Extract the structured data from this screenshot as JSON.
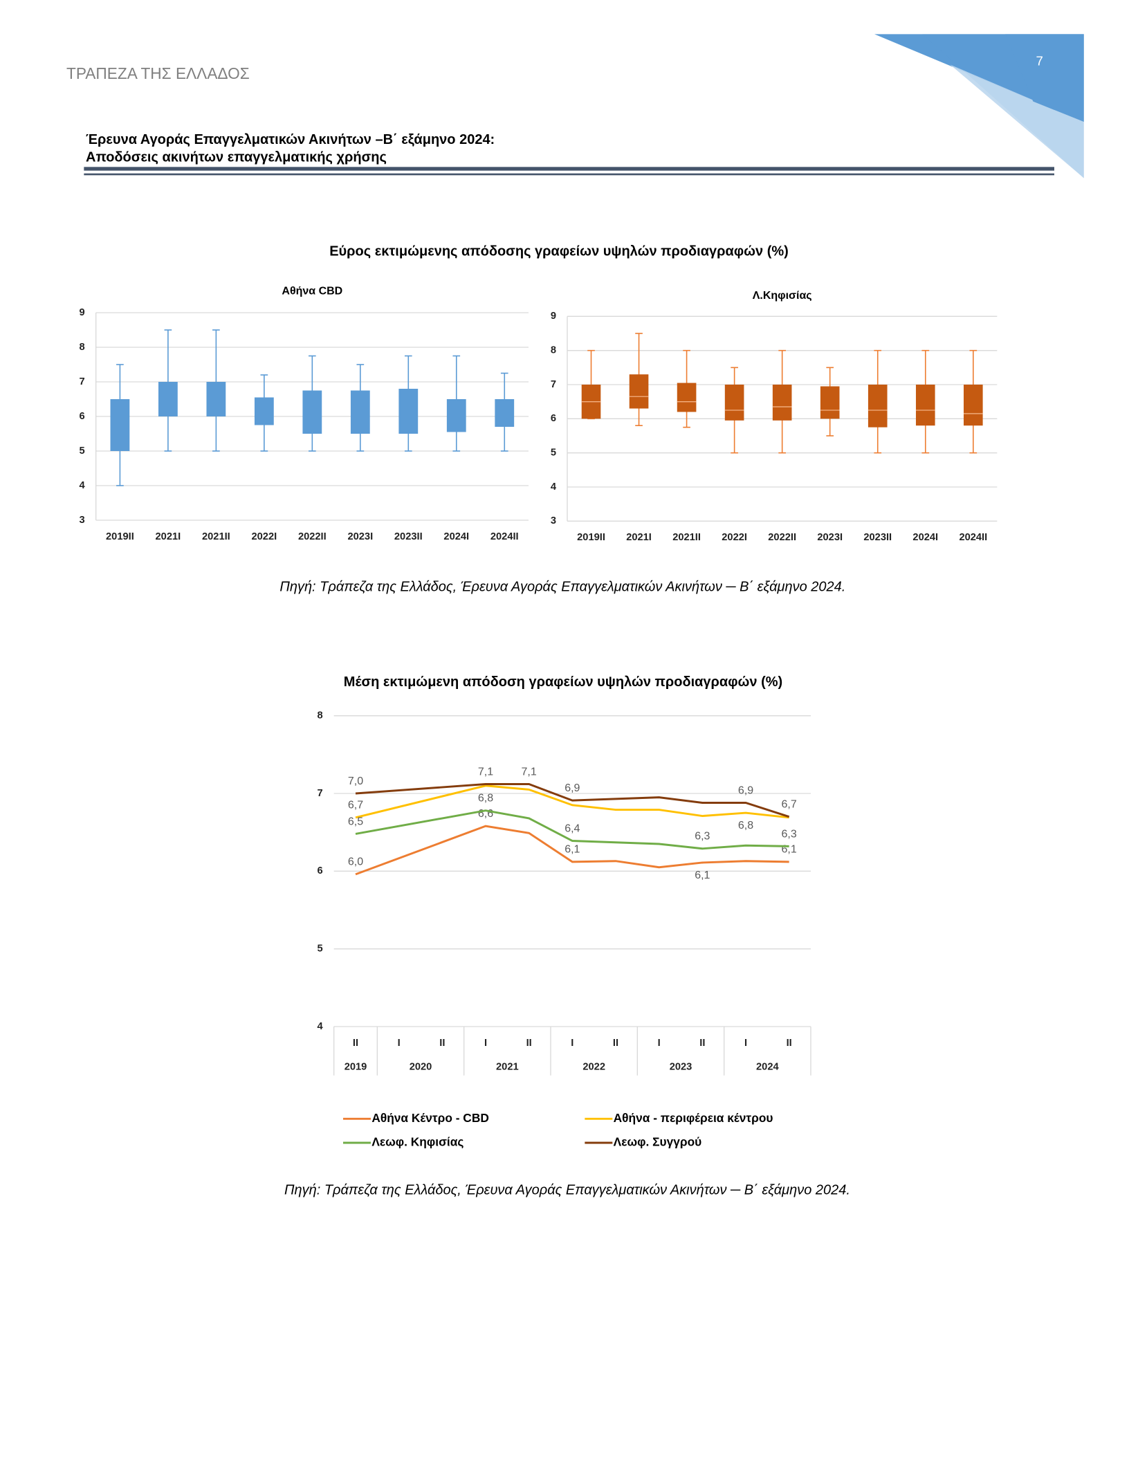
{
  "header": {
    "bank": "ΤΡΑΠΕΖΑ ΤΗΣ ΕΛΛΑΔΟΣ",
    "page": "7",
    "title_line1": "Έρευνα Αγοράς Επαγγελματικών Ακινήτων –Β΄ εξάμηνο 2024:",
    "title_line2": "Αποδόσεις ακινήτων επαγγελματικής χρήσης"
  },
  "figure1": {
    "title": "Εύρος εκτιμώμενης απόδοσης γραφείων υψηλών προδιαγραφών (%)",
    "source": "Πηγή: Τράπεζα της Ελλάδος, Έρευνα Αγοράς Επαγγελματικών Ακινήτων ─ Β΄ εξάμηνο 2024."
  },
  "chart_data": [
    {
      "type": "box",
      "title": "Αθήνα CBD",
      "color": "#5b9bd5",
      "whisker_color": "#5b9bd5",
      "categories": [
        "2019II",
        "2021I",
        "2021II",
        "2022I",
        "2022II",
        "2023I",
        "2023II",
        "2024I",
        "2024II"
      ],
      "boxes": [
        {
          "min": 4,
          "q1": 5,
          "q3": 6.5,
          "max": 7.5
        },
        {
          "min": 5,
          "q1": 6,
          "q3": 7,
          "max": 8.5
        },
        {
          "min": 5,
          "q1": 6,
          "q3": 7,
          "max": 8.5
        },
        {
          "min": 5,
          "q1": 5.75,
          "q3": 6.55,
          "max": 7.2
        },
        {
          "min": 5,
          "q1": 5.5,
          "q3": 6.75,
          "max": 7.75
        },
        {
          "min": 5,
          "q1": 5.5,
          "q3": 6.75,
          "max": 7.5
        },
        {
          "min": 5,
          "q1": 5.5,
          "q3": 6.8,
          "max": 7.75
        },
        {
          "min": 5,
          "q1": 5.55,
          "q3": 6.5,
          "max": 7.75
        },
        {
          "min": 5,
          "q1": 5.7,
          "q3": 6.5,
          "max": 7.25
        }
      ],
      "ylim": [
        3,
        9
      ],
      "yticks": [
        3,
        4,
        5,
        6,
        7,
        8,
        9
      ],
      "grid": true
    },
    {
      "type": "box",
      "title": "Λ.Κηφισίας",
      "color": "#c55a11",
      "whisker_color": "#ed7d31",
      "median_color": "#f4b183",
      "categories": [
        "2019II",
        "2021I",
        "2021II",
        "2022I",
        "2022II",
        "2023I",
        "2023II",
        "2024I",
        "2024II"
      ],
      "boxes": [
        {
          "min": 6,
          "q1": 6,
          "median": 6.5,
          "q3": 7,
          "max": 8
        },
        {
          "min": 5.8,
          "q1": 6.3,
          "median": 6.65,
          "q3": 7.3,
          "max": 8.5
        },
        {
          "min": 5.75,
          "q1": 6.2,
          "median": 6.5,
          "q3": 7.05,
          "max": 8
        },
        {
          "min": 5,
          "q1": 5.95,
          "median": 6.25,
          "q3": 7,
          "max": 7.5
        },
        {
          "min": 5,
          "q1": 5.95,
          "median": 6.35,
          "q3": 7,
          "max": 8
        },
        {
          "min": 5.5,
          "q1": 6,
          "median": 6.25,
          "q3": 6.95,
          "max": 7.5
        },
        {
          "min": 5,
          "q1": 5.75,
          "median": 6.25,
          "q3": 7,
          "max": 8
        },
        {
          "min": 5,
          "q1": 5.8,
          "median": 6.25,
          "q3": 7,
          "max": 8
        },
        {
          "min": 5,
          "q1": 5.8,
          "median": 6.15,
          "q3": 7,
          "max": 8
        }
      ],
      "ylim": [
        3,
        9
      ],
      "yticks": [
        3,
        4,
        5,
        6,
        7,
        8,
        9
      ],
      "grid": true
    },
    {
      "type": "line",
      "title": "Μέση εκτιμώμενη απόδοση γραφείων υψηλών προδιαγραφών (%)",
      "source": "Πηγή: Τράπεζα της Ελλάδος, Έρευνα Αγοράς Επαγγελματικών Ακινήτων  ─  Β΄ εξάμηνο 2024.",
      "categories": [
        "II",
        "I",
        "II",
        "I",
        "II",
        "I",
        "II",
        "I",
        "II",
        "I",
        "II"
      ],
      "category_groups": [
        {
          "name": "2019",
          "count": 1
        },
        {
          "name": "2020",
          "count": 2
        },
        {
          "name": "2021",
          "count": 2
        },
        {
          "name": "2022",
          "count": 2
        },
        {
          "name": "2023",
          "count": 2
        },
        {
          "name": "2024",
          "count": 2
        }
      ],
      "span_gaps": true,
      "series": [
        {
          "name": "Αθήνα Κέντρο - CBD",
          "color": "#ed7d31",
          "values": [
            5.96,
            null,
            null,
            6.58,
            6.49,
            6.12,
            6.13,
            6.05,
            6.11,
            6.13,
            6.12
          ],
          "value_labels": [
            "6,0",
            null,
            null,
            "6,6",
            null,
            "6,1",
            null,
            null,
            "6,1",
            null,
            "6,1"
          ]
        },
        {
          "name": "Αθήνα - περιφέρεια κέντρου",
          "color": "#ffc000",
          "values": [
            6.69,
            null,
            null,
            7.1,
            7.05,
            6.85,
            6.79,
            6.79,
            6.71,
            6.75,
            6.69
          ],
          "value_labels": [
            "6,7",
            null,
            null,
            null,
            null,
            null,
            null,
            null,
            null,
            "6,8",
            null
          ]
        },
        {
          "name": "Λεωφ. Κηφισίας",
          "color": "#70ad47",
          "values": [
            6.48,
            null,
            null,
            6.78,
            6.68,
            6.39,
            6.37,
            6.35,
            6.29,
            6.33,
            6.32
          ],
          "value_labels": [
            "6,5",
            null,
            null,
            "6,8",
            null,
            "6,4",
            null,
            null,
            "6,3",
            null,
            "6,3"
          ]
        },
        {
          "name": "Λεωφ. Συγγρού",
          "color": "#843c0c",
          "values": [
            7.0,
            null,
            null,
            7.12,
            7.12,
            6.91,
            6.93,
            6.95,
            6.88,
            6.88,
            6.7
          ],
          "value_labels": [
            "7,0",
            null,
            null,
            "7,1",
            "7,1",
            "6,9",
            null,
            null,
            null,
            "6,9",
            "6,7"
          ]
        }
      ],
      "ylim": [
        4,
        8
      ],
      "yticks": [
        4,
        5,
        6,
        7,
        8
      ],
      "grid": true
    }
  ]
}
